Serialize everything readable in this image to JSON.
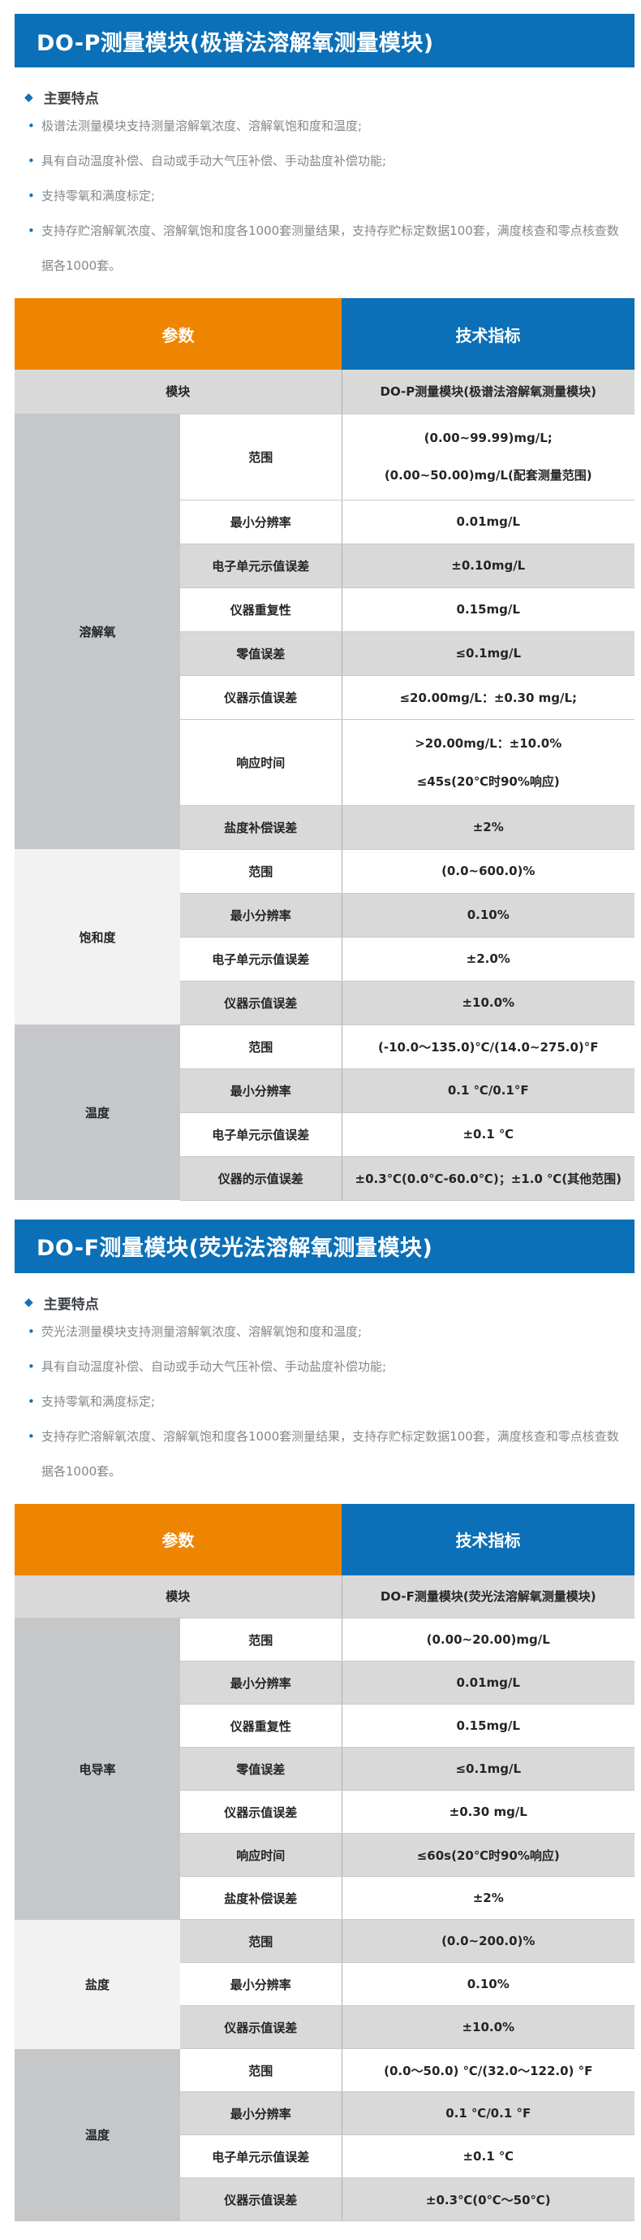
{
  "colors": {
    "banner_blue": "#0b70b7",
    "header_orange": "#ee8500",
    "header_blue": "#0b70b7",
    "row_gray": "#d9d9d9",
    "group_dark_gray": "#c6c7c9",
    "group_light_gray": "#f2f2f3",
    "bullet_blue": "#1371b6",
    "feature_text_gray": "#84888b"
  },
  "sections": [
    {
      "banner_title": "DO-P测量模块(极谱法溶解氧测量模块)",
      "features_heading": "主要特点",
      "features": [
        "极谱法测量模块支持测量溶解氧浓度、溶解氧饱和度和温度;",
        "具有自动温度补偿、自动或手动大气压补偿、手动盐度补偿功能;",
        "支持零氧和满度标定;",
        "支持存贮溶解氧浓度、溶解氧饱和度各1000套测量结果，支持存贮标定数据100套，满度核查和零点核查数据各1000套。"
      ],
      "table": {
        "header": {
          "param": "参数",
          "spec": "技术指标"
        },
        "module_row": {
          "label": "模块",
          "value": "DO-P测量模块(极谱法溶解氧测量模块)"
        },
        "groups": [
          {
            "name": "溶解氧",
            "tone": "dark",
            "rows": [
              {
                "param": "范围",
                "lines": [
                  "(0.00~99.99)mg/L;",
                  "(0.00~50.00)mg/L(配套测量范围)"
                ]
              },
              {
                "param": "最小分辨率",
                "lines": [
                  "0.01mg/L"
                ]
              },
              {
                "param": "电子单元示值误差",
                "lines": [
                  "±0.10mg/L"
                ]
              },
              {
                "param": "仪器重复性",
                "lines": [
                  "0.15mg/L"
                ]
              },
              {
                "param": "零值误差",
                "lines": [
                  "≤0.1mg/L"
                ]
              },
              {
                "param": "仪器示值误差",
                "lines": [
                  "≤20.00mg/L：±0.30 mg/L;"
                ]
              },
              {
                "param": "响应时间",
                "lines": [
                  ">20.00mg/L：±10.0%",
                  "≤45s(20℃时90%响应)"
                ]
              },
              {
                "param": "盐度补偿误差",
                "lines": [
                  "±2%"
                ]
              }
            ]
          },
          {
            "name": "饱和度",
            "tone": "light",
            "rows": [
              {
                "param": "范围",
                "lines": [
                  "(0.0~600.0)%"
                ]
              },
              {
                "param": "最小分辨率",
                "lines": [
                  "0.10%"
                ]
              },
              {
                "param": "电子单元示值误差",
                "lines": [
                  "±2.0%"
                ]
              },
              {
                "param": "仪器示值误差",
                "lines": [
                  "±10.0%"
                ]
              }
            ]
          },
          {
            "name": "温度",
            "tone": "dark",
            "rows": [
              {
                "param": "范围",
                "lines": [
                  "(-10.0～135.0)℃/(14.0~275.0)°F"
                ]
              },
              {
                "param": "最小分辨率",
                "lines": [
                  "0.1 ℃/0.1°F"
                ]
              },
              {
                "param": "电子单元示值误差",
                "lines": [
                  "±0.1 ℃"
                ]
              },
              {
                "param": "仪器的示值误差",
                "lines": [
                  "±0.3℃(0.0℃-60.0℃)；±1.0 ℃(其他范围)"
                ]
              }
            ]
          }
        ]
      }
    },
    {
      "banner_title": "DO-F测量模块(荧光法溶解氧测量模块)",
      "features_heading": "主要特点",
      "features": [
        "荧光法测量模块支持测量溶解氧浓度、溶解氧饱和度和温度;",
        "具有自动温度补偿、自动或手动大气压补偿、手动盐度补偿功能;",
        "支持零氧和满度标定;",
        "支持存贮溶解氧浓度、溶解氧饱和度各1000套测量结果，支持存贮标定数据100套，满度核查和零点核查数据各1000套。"
      ],
      "table": {
        "header": {
          "param": "参数",
          "spec": "技术指标"
        },
        "module_row": {
          "label": "模块",
          "value": "DO-F测量模块(荧光法溶解氧测量模块)"
        },
        "groups": [
          {
            "name": "电导率",
            "tone": "dark",
            "rows": [
              {
                "param": "范围",
                "lines": [
                  "(0.00~20.00)mg/L"
                ]
              },
              {
                "param": "最小分辨率",
                "lines": [
                  "0.01mg/L"
                ]
              },
              {
                "param": "仪器重复性",
                "lines": [
                  "0.15mg/L"
                ]
              },
              {
                "param": "零值误差",
                "lines": [
                  "≤0.1mg/L"
                ]
              },
              {
                "param": "仪器示值误差",
                "lines": [
                  "±0.30 mg/L"
                ]
              },
              {
                "param": "响应时间",
                "lines": [
                  "≤60s(20℃时90%响应)"
                ]
              },
              {
                "param": "盐度补偿误差",
                "lines": [
                  "±2%"
                ]
              }
            ]
          },
          {
            "name": "盐度",
            "tone": "light",
            "rows": [
              {
                "param": "范围",
                "lines": [
                  "(0.0~200.0)%"
                ]
              },
              {
                "param": "最小分辨率",
                "lines": [
                  "0.10%"
                ]
              },
              {
                "param": "仪器示值误差",
                "lines": [
                  "±10.0%"
                ]
              }
            ]
          },
          {
            "name": "温度",
            "tone": "dark",
            "rows": [
              {
                "param": "范围",
                "lines": [
                  "(0.0～50.0) ℃/(32.0～122.0) °F"
                ]
              },
              {
                "param": "最小分辨率",
                "lines": [
                  "0.1 ℃/0.1 °F"
                ]
              },
              {
                "param": "电子单元示值误差",
                "lines": [
                  "±0.1 ℃"
                ]
              },
              {
                "param": "仪器示值误差",
                "lines": [
                  "±0.3℃(0℃～50℃)"
                ]
              }
            ]
          }
        ]
      }
    }
  ]
}
